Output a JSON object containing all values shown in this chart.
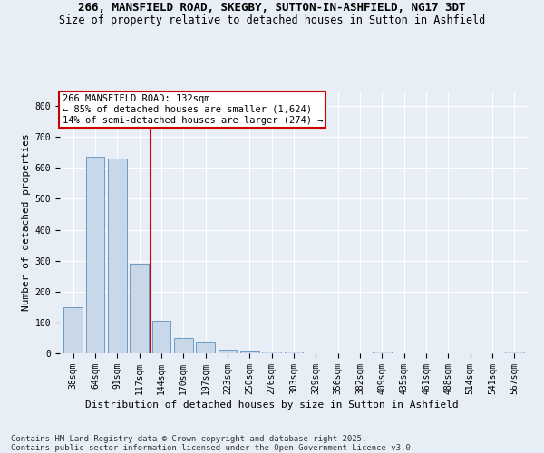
{
  "title_line1": "266, MANSFIELD ROAD, SKEGBY, SUTTON-IN-ASHFIELD, NG17 3DT",
  "title_line2": "Size of property relative to detached houses in Sutton in Ashfield",
  "xlabel": "Distribution of detached houses by size in Sutton in Ashfield",
  "ylabel": "Number of detached properties",
  "categories": [
    "38sqm",
    "64sqm",
    "91sqm",
    "117sqm",
    "144sqm",
    "170sqm",
    "197sqm",
    "223sqm",
    "250sqm",
    "276sqm",
    "303sqm",
    "329sqm",
    "356sqm",
    "382sqm",
    "409sqm",
    "435sqm",
    "461sqm",
    "488sqm",
    "514sqm",
    "541sqm",
    "567sqm"
  ],
  "values": [
    150,
    635,
    630,
    290,
    105,
    50,
    35,
    13,
    10,
    5,
    5,
    0,
    0,
    0,
    5,
    0,
    0,
    0,
    0,
    0,
    5
  ],
  "bar_color": "#c8d8e8",
  "bar_edge_color": "#5a90c0",
  "property_line_x": 3.5,
  "property_label": "266 MANSFIELD ROAD: 132sqm",
  "annotation_line1": "← 85% of detached houses are smaller (1,624)",
  "annotation_line2": "14% of semi-detached houses are larger (274) →",
  "line_color": "#cc0000",
  "annotation_box_color": "#cc0000",
  "bg_color": "#e8eef5",
  "ylim": [
    0,
    850
  ],
  "yticks": [
    0,
    100,
    200,
    300,
    400,
    500,
    600,
    700,
    800
  ],
  "footer_line1": "Contains HM Land Registry data © Crown copyright and database right 2025.",
  "footer_line2": "Contains public sector information licensed under the Open Government Licence v3.0.",
  "grid_color": "#ffffff",
  "title_fontsize": 9,
  "subtitle_fontsize": 8.5,
  "axis_label_fontsize": 8,
  "tick_fontsize": 7,
  "footer_fontsize": 6.5,
  "annotation_fontsize": 7.5
}
